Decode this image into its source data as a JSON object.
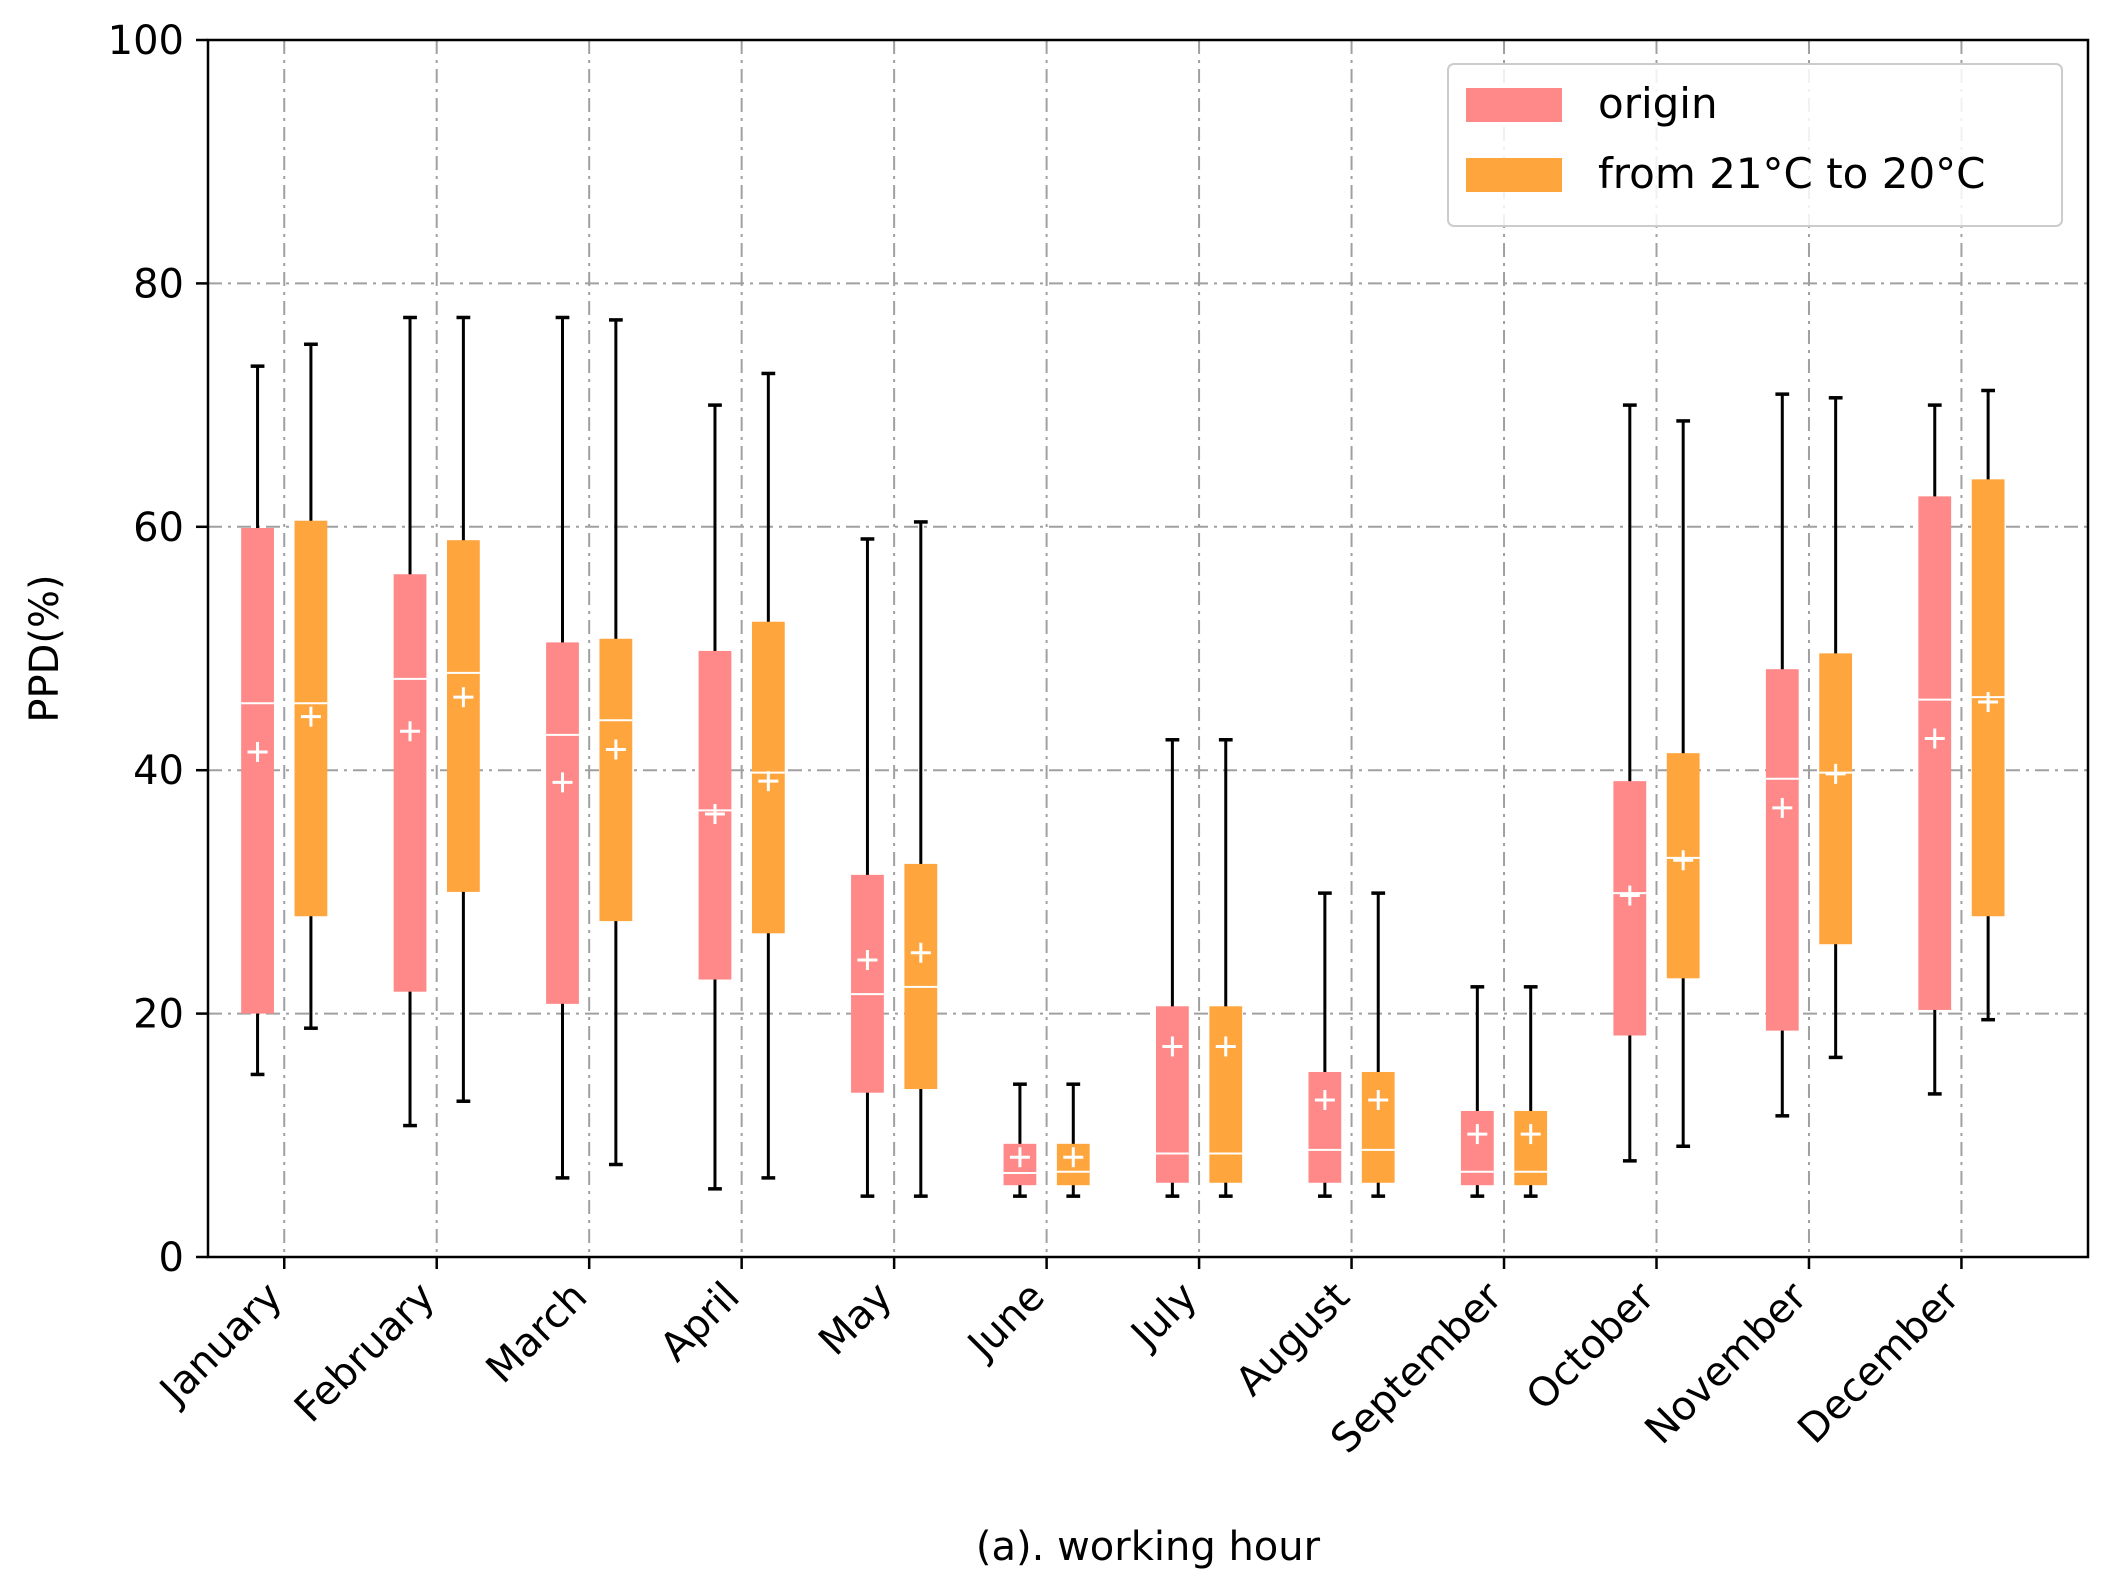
{
  "chart_data": {
    "type": "boxplot",
    "title": "",
    "xlabel": "(a). working hour",
    "ylabel": "PPD(%)",
    "ylim": [
      0,
      100
    ],
    "yticks": [
      0,
      20,
      40,
      60,
      80,
      100
    ],
    "grid": true,
    "legend_position": "top-right",
    "categories": [
      "January",
      "February",
      "March",
      "April",
      "May",
      "June",
      "July",
      "August",
      "September",
      "October",
      "November",
      "December"
    ],
    "series": [
      {
        "name": "origin",
        "color": "#FF8888",
        "boxes": [
          {
            "whislo": 15.0,
            "q1": 20.0,
            "med": 45.5,
            "q3": 59.9,
            "whishi": 73.2,
            "mean": 41.5
          },
          {
            "whislo": 10.8,
            "q1": 21.8,
            "med": 47.5,
            "q3": 56.1,
            "whishi": 77.2,
            "mean": 43.2
          },
          {
            "whislo": 6.5,
            "q1": 20.8,
            "med": 42.9,
            "q3": 50.5,
            "whishi": 77.2,
            "mean": 39.0
          },
          {
            "whislo": 5.6,
            "q1": 22.8,
            "med": 36.7,
            "q3": 49.8,
            "whishi": 70.0,
            "mean": 36.4
          },
          {
            "whislo": 5.0,
            "q1": 13.5,
            "med": 21.6,
            "q3": 31.4,
            "whishi": 59.0,
            "mean": 24.4
          },
          {
            "whislo": 5.0,
            "q1": 5.9,
            "med": 6.9,
            "q3": 9.3,
            "whishi": 14.2,
            "mean": 8.2
          },
          {
            "whislo": 5.0,
            "q1": 6.1,
            "med": 8.5,
            "q3": 20.6,
            "whishi": 42.5,
            "mean": 17.3
          },
          {
            "whislo": 5.0,
            "q1": 6.1,
            "med": 8.8,
            "q3": 15.2,
            "whishi": 29.9,
            "mean": 12.9
          },
          {
            "whislo": 5.0,
            "q1": 5.9,
            "med": 7.0,
            "q3": 12.0,
            "whishi": 22.2,
            "mean": 10.1
          },
          {
            "whislo": 7.9,
            "q1": 18.2,
            "med": 29.9,
            "q3": 39.1,
            "whishi": 70.0,
            "mean": 29.7
          },
          {
            "whislo": 11.6,
            "q1": 18.6,
            "med": 39.3,
            "q3": 48.3,
            "whishi": 70.9,
            "mean": 36.9
          },
          {
            "whislo": 13.4,
            "q1": 20.3,
            "med": 45.8,
            "q3": 62.5,
            "whishi": 70.0,
            "mean": 42.6
          }
        ]
      },
      {
        "name": "from 21°C to 20°C",
        "color": "#FFA53D",
        "boxes": [
          {
            "whislo": 18.8,
            "q1": 28.0,
            "med": 45.5,
            "q3": 60.5,
            "whishi": 75.0,
            "mean": 44.4
          },
          {
            "whislo": 12.8,
            "q1": 30.0,
            "med": 48.0,
            "q3": 58.9,
            "whishi": 77.2,
            "mean": 46.0
          },
          {
            "whislo": 7.6,
            "q1": 27.6,
            "med": 44.1,
            "q3": 50.8,
            "whishi": 77.0,
            "mean": 41.7
          },
          {
            "whislo": 6.5,
            "q1": 26.6,
            "med": 39.8,
            "q3": 52.2,
            "whishi": 72.6,
            "mean": 39.1
          },
          {
            "whislo": 5.0,
            "q1": 13.8,
            "med": 22.2,
            "q3": 32.3,
            "whishi": 60.4,
            "mean": 25.0
          },
          {
            "whislo": 5.0,
            "q1": 5.9,
            "med": 7.0,
            "q3": 9.3,
            "whishi": 14.2,
            "mean": 8.2
          },
          {
            "whislo": 5.0,
            "q1": 6.1,
            "med": 8.5,
            "q3": 20.6,
            "whishi": 42.5,
            "mean": 17.3
          },
          {
            "whislo": 5.0,
            "q1": 6.1,
            "med": 8.8,
            "q3": 15.2,
            "whishi": 29.9,
            "mean": 12.9
          },
          {
            "whislo": 5.0,
            "q1": 5.9,
            "med": 7.0,
            "q3": 12.0,
            "whishi": 22.2,
            "mean": 10.1
          },
          {
            "whislo": 9.1,
            "q1": 22.9,
            "med": 32.8,
            "q3": 41.4,
            "whishi": 68.7,
            "mean": 32.6
          },
          {
            "whislo": 16.4,
            "q1": 25.7,
            "med": 39.8,
            "q3": 49.6,
            "whishi": 70.6,
            "mean": 39.7
          },
          {
            "whislo": 19.5,
            "q1": 28.0,
            "med": 46.0,
            "q3": 63.9,
            "whishi": 71.2,
            "mean": 45.6
          }
        ]
      }
    ]
  }
}
